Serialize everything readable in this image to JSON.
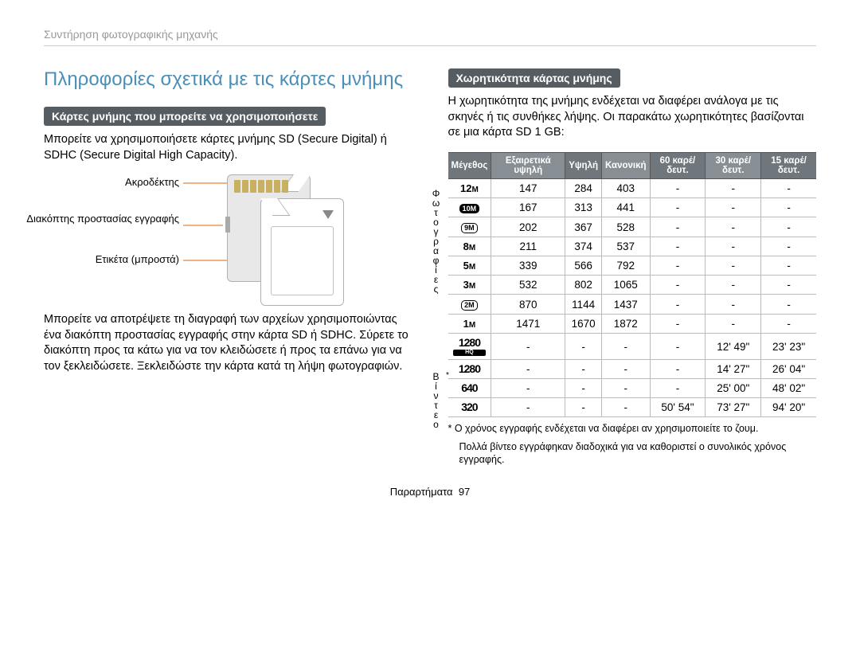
{
  "colors": {
    "title": "#4a8fb8",
    "heading_bg": "#555d62",
    "header_breadcrumb": "#999999",
    "callout_line": "#e8833a",
    "table_border": "#bbbbbb",
    "table_h1": "#6f777c",
    "table_h2": "#878f94",
    "table_h3": "#6f777c",
    "table_h4": "#878f94",
    "table_h5": "#6f777c",
    "table_h6": "#878f94",
    "table_h7": "#6f777c"
  },
  "header": {
    "breadcrumb": "Συντήρηση φωτογραφικής μηχανής"
  },
  "left": {
    "title": "Πληροφορίες σχετικά με τις κάρτες μνήμης",
    "heading": "Κάρτες μνήμης που μπορείτε να χρησιμοποιήσετε",
    "p1": "Μπορείτε να χρησιμοποιήσετε κάρτες μνήμης SD (Secure Digital) ή SDHC (Secure Digital High Capacity).",
    "diagram": {
      "pins": "Ακροδέκτης",
      "switch": "Διακόπτης προστασίας εγγραφής",
      "front": "Ετικέτα (μπροστά)"
    },
    "p2": "Μπορείτε να αποτρέψετε τη διαγραφή των αρχείων χρησιμοποιώντας ένα διακόπτη προστασίας εγγραφής στην κάρτα SD ή SDHC. Σύρετε το διακόπτη προς τα κάτω για να τον κλειδώσετε ή προς τα επάνω για να τον ξεκλειδώσετε. Ξεκλειδώστε την κάρτα κατά τη λήψη φωτογραφιών."
  },
  "right": {
    "heading": "Χωρητικότητα κάρτας μνήμης",
    "p1": "Η χωρητικότητα της μνήμης ενδέχεται να διαφέρει ανάλογα με τις σκηνές ή τις συνθήκες λήψης. Οι παρακάτω χωρητικότητες βασίζονται σε μια κάρτα SD 1 GB:",
    "sidelabel_photo": "Φωτογραφίες",
    "sidelabel_video": "Βίντεο",
    "star": "*",
    "table": {
      "headers": [
        "Μέγεθος",
        "Εξαιρετικά υψηλή",
        "Υψηλή",
        "Κανονική",
        "60 καρέ/ δευτ.",
        "30 καρέ/ δευτ.",
        "15 καρέ/ δευτ."
      ],
      "rows": [
        {
          "size_style": "plain",
          "size": "12M",
          "vals": [
            "147",
            "284",
            "403",
            "-",
            "-",
            "-"
          ]
        },
        {
          "size_style": "icon_dark",
          "size": "10M",
          "vals": [
            "167",
            "313",
            "441",
            "-",
            "-",
            "-"
          ]
        },
        {
          "size_style": "icon",
          "size": "9M",
          "vals": [
            "202",
            "367",
            "528",
            "-",
            "-",
            "-"
          ]
        },
        {
          "size_style": "plain",
          "size": "8M",
          "vals": [
            "211",
            "374",
            "537",
            "-",
            "-",
            "-"
          ]
        },
        {
          "size_style": "plain",
          "size": "5M",
          "vals": [
            "339",
            "566",
            "792",
            "-",
            "-",
            "-"
          ]
        },
        {
          "size_style": "plain",
          "size": "3M",
          "vals": [
            "532",
            "802",
            "1065",
            "-",
            "-",
            "-"
          ]
        },
        {
          "size_style": "icon",
          "size": "2M",
          "vals": [
            "870",
            "1144",
            "1437",
            "-",
            "-",
            "-"
          ]
        },
        {
          "size_style": "plain",
          "size": "1M",
          "vals": [
            "1471",
            "1670",
            "1872",
            "-",
            "-",
            "-"
          ]
        },
        {
          "size_style": "vid_hq",
          "size": "1280",
          "vals": [
            "-",
            "-",
            "-",
            "-",
            "12' 49\"",
            "23' 23\""
          ]
        },
        {
          "size_style": "vid",
          "size": "1280",
          "vals": [
            "-",
            "-",
            "-",
            "-",
            "14' 27\"",
            "26' 04\""
          ]
        },
        {
          "size_style": "vid",
          "size": "640",
          "vals": [
            "-",
            "-",
            "-",
            "-",
            "25' 00\"",
            "48' 02\""
          ]
        },
        {
          "size_style": "vid",
          "size": "320",
          "vals": [
            "-",
            "-",
            "-",
            "50' 54\"",
            "73' 27\"",
            "94' 20\""
          ]
        }
      ]
    },
    "footnote1": "* Ο χρόνος εγγραφής ενδέχεται να διαφέρει αν χρησιμοποιείτε το ζουμ.",
    "footnote2": "Πολλά βίντεο εγγράφηκαν διαδοχικά για να καθοριστεί ο συνολικός χρόνος εγγραφής."
  },
  "footer": {
    "section": "Παραρτήματα",
    "page": "97"
  }
}
